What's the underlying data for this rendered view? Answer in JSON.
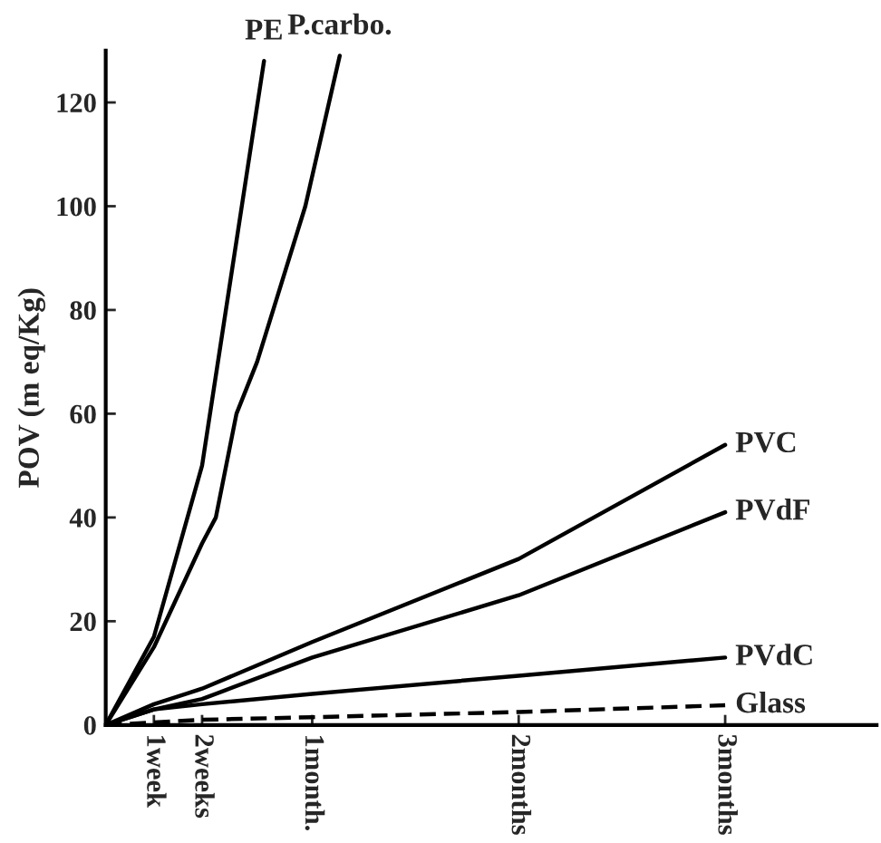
{
  "chart_data": {
    "type": "line",
    "ylabel": "POV (m eq/Kg)",
    "categories": [
      null,
      null,
      null,
      null,
      null,
      null,
      null,
      "1week",
      null,
      null,
      null,
      null,
      null,
      null,
      "2weeks",
      null,
      null,
      null,
      null,
      null,
      null,
      null,
      null,
      null,
      null,
      null,
      null,
      null,
      null,
      null,
      "1month.",
      null,
      null,
      null,
      null,
      null,
      null,
      null,
      null,
      null,
      null,
      null,
      null,
      null,
      null,
      null,
      null,
      null,
      null,
      null,
      null,
      null,
      null,
      null,
      null,
      null,
      null,
      null,
      null,
      null,
      "2months",
      null,
      null,
      null,
      null,
      null,
      null,
      null,
      null,
      null,
      null,
      null,
      null,
      null,
      null,
      null,
      null,
      null,
      null,
      null,
      null,
      null,
      null,
      null,
      null,
      null,
      null,
      null,
      null,
      null,
      "3months",
      null,
      null,
      null,
      null,
      null,
      null,
      null,
      null,
      null,
      null,
      null,
      null,
      null,
      null,
      null,
      null,
      null,
      null,
      null,
      null,
      null,
      null
    ],
    "ylim": [
      0,
      130
    ],
    "yticks": [
      0,
      20,
      40,
      60,
      80,
      100,
      120
    ],
    "grid": false,
    "legend": false,
    "marker": "none",
    "series": [
      {
        "name": "PE",
        "color": "#000000",
        "line_style": "solid",
        "values": [
          0,
          null,
          null,
          null,
          null,
          null,
          null,
          17,
          null,
          null,
          null,
          null,
          null,
          null,
          50,
          null,
          null,
          null,
          null,
          null,
          null,
          null,
          null,
          128,
          null,
          null,
          null,
          null,
          null,
          null,
          null,
          null,
          null,
          null,
          null,
          null,
          null,
          null,
          null,
          null,
          null,
          null,
          null,
          null,
          null,
          null,
          null,
          null,
          null,
          null,
          null,
          null,
          null,
          null,
          null,
          null,
          null,
          null,
          null,
          null,
          null,
          null,
          null,
          null,
          null,
          null,
          null,
          null,
          null,
          null,
          null,
          null,
          null,
          null,
          null,
          null,
          null,
          null,
          null,
          null,
          null,
          null,
          null,
          null,
          null,
          null,
          null,
          null,
          null,
          null,
          null,
          null,
          null,
          null,
          null,
          null,
          null,
          null,
          null,
          null,
          null,
          null,
          null,
          null,
          null,
          null,
          null,
          null,
          null,
          null,
          null,
          null,
          null
        ]
      },
      {
        "name": "P.carbo.",
        "color": "#000000",
        "line_style": "solid",
        "values": [
          0,
          null,
          null,
          null,
          null,
          null,
          null,
          15,
          null,
          null,
          null,
          null,
          null,
          null,
          35,
          null,
          40,
          null,
          null,
          60,
          null,
          null,
          70,
          null,
          null,
          null,
          null,
          null,
          null,
          100,
          null,
          null,
          null,
          null,
          129,
          null,
          null,
          null,
          null,
          null,
          null,
          null,
          null,
          null,
          null,
          null,
          null,
          null,
          null,
          null,
          null,
          null,
          null,
          null,
          null,
          null,
          null,
          null,
          null,
          null,
          null,
          null,
          null,
          null,
          null,
          null,
          null,
          null,
          null,
          null,
          null,
          null,
          null,
          null,
          null,
          null,
          null,
          null,
          null,
          null,
          null,
          null,
          null,
          null,
          null,
          null,
          null,
          null,
          null,
          null,
          null,
          null,
          null,
          null,
          null,
          null,
          null,
          null,
          null,
          null,
          null,
          null,
          null,
          null,
          null,
          null,
          null,
          null,
          null,
          null,
          null,
          null,
          null
        ]
      },
      {
        "name": "PVC",
        "color": "#000000",
        "line_style": "solid",
        "values": [
          0,
          null,
          null,
          null,
          null,
          null,
          null,
          4,
          null,
          null,
          null,
          null,
          null,
          null,
          7,
          null,
          null,
          null,
          null,
          null,
          null,
          null,
          null,
          null,
          null,
          null,
          null,
          null,
          null,
          null,
          16,
          null,
          null,
          null,
          null,
          null,
          null,
          null,
          null,
          null,
          null,
          null,
          null,
          null,
          null,
          null,
          null,
          null,
          null,
          null,
          null,
          null,
          null,
          null,
          null,
          null,
          null,
          null,
          null,
          null,
          32,
          null,
          null,
          null,
          null,
          null,
          null,
          null,
          null,
          null,
          null,
          null,
          null,
          null,
          null,
          null,
          null,
          null,
          null,
          null,
          null,
          null,
          null,
          null,
          null,
          null,
          null,
          null,
          null,
          null,
          54,
          null,
          null,
          null,
          null,
          null,
          null,
          null,
          null,
          null,
          null,
          null,
          null,
          null,
          null,
          null,
          null,
          null,
          null,
          null,
          null,
          null,
          null
        ]
      },
      {
        "name": "PVdF",
        "color": "#000000",
        "line_style": "solid",
        "values": [
          0,
          null,
          null,
          null,
          null,
          null,
          null,
          3,
          null,
          null,
          null,
          null,
          null,
          null,
          5,
          null,
          null,
          null,
          null,
          null,
          null,
          null,
          null,
          null,
          null,
          null,
          null,
          null,
          null,
          null,
          13,
          null,
          null,
          null,
          null,
          null,
          null,
          null,
          null,
          null,
          null,
          null,
          null,
          null,
          null,
          null,
          null,
          null,
          null,
          null,
          null,
          null,
          null,
          null,
          null,
          null,
          null,
          null,
          null,
          null,
          25,
          null,
          null,
          null,
          null,
          null,
          null,
          null,
          null,
          null,
          null,
          null,
          null,
          null,
          null,
          null,
          null,
          null,
          null,
          null,
          null,
          null,
          null,
          null,
          null,
          null,
          null,
          null,
          null,
          null,
          41,
          null,
          null,
          null,
          null,
          null,
          null,
          null,
          null,
          null,
          null,
          null,
          null,
          null,
          null,
          null,
          null,
          null,
          null,
          null,
          null,
          null,
          null
        ]
      },
      {
        "name": "PVdC",
        "color": "#000000",
        "line_style": "solid",
        "values": [
          0,
          null,
          null,
          null,
          null,
          null,
          null,
          3,
          null,
          null,
          null,
          null,
          null,
          null,
          4,
          null,
          null,
          null,
          null,
          null,
          null,
          null,
          null,
          null,
          null,
          null,
          null,
          null,
          null,
          null,
          6,
          null,
          null,
          null,
          null,
          null,
          null,
          null,
          null,
          null,
          null,
          null,
          null,
          null,
          null,
          null,
          null,
          null,
          null,
          null,
          null,
          null,
          null,
          null,
          null,
          null,
          null,
          null,
          null,
          null,
          9.5,
          null,
          null,
          null,
          null,
          null,
          null,
          null,
          null,
          null,
          null,
          null,
          null,
          null,
          null,
          null,
          null,
          null,
          null,
          null,
          null,
          null,
          null,
          null,
          null,
          null,
          null,
          null,
          null,
          null,
          13,
          null,
          null,
          null,
          null,
          null,
          null,
          null,
          null,
          null,
          null,
          null,
          null,
          null,
          null,
          null,
          null,
          null,
          null,
          null,
          null,
          null,
          null
        ]
      },
      {
        "name": "Glass",
        "color": "#000000",
        "line_style": "dashed",
        "values": [
          0,
          null,
          null,
          null,
          null,
          null,
          null,
          0.5,
          null,
          null,
          null,
          null,
          null,
          null,
          1,
          null,
          null,
          null,
          null,
          null,
          null,
          null,
          null,
          null,
          null,
          null,
          null,
          null,
          null,
          null,
          1.5,
          null,
          null,
          null,
          null,
          null,
          null,
          null,
          null,
          null,
          null,
          null,
          null,
          null,
          null,
          null,
          null,
          null,
          null,
          null,
          null,
          null,
          null,
          null,
          null,
          null,
          null,
          null,
          null,
          null,
          2.5,
          null,
          null,
          null,
          null,
          null,
          null,
          null,
          null,
          null,
          null,
          null,
          null,
          null,
          null,
          null,
          null,
          null,
          null,
          null,
          null,
          null,
          null,
          null,
          null,
          null,
          null,
          null,
          null,
          null,
          3.8,
          null,
          null,
          null,
          null,
          null,
          null,
          null,
          null,
          null,
          null,
          null,
          null,
          null,
          null,
          null,
          null,
          null,
          null,
          null,
          null,
          null,
          null
        ]
      }
    ]
  }
}
